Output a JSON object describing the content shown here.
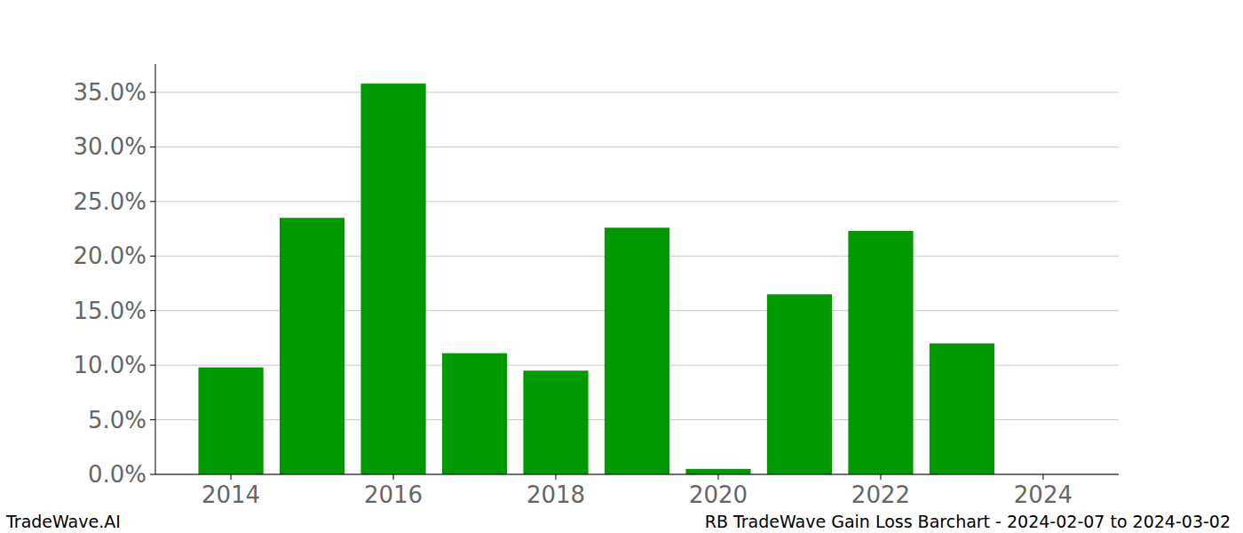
{
  "chart_data": {
    "type": "bar",
    "title": "RB TradeWave Gain Loss Barchart - 2024-02-07 to 2024-03-02",
    "annotations": [
      "TradeWave.AI"
    ],
    "x": [
      2014,
      2015,
      2016,
      2017,
      2018,
      2019,
      2020,
      2021,
      2022,
      2023
    ],
    "values": [
      9.8,
      23.5,
      35.8,
      11.1,
      9.5,
      22.6,
      0.5,
      16.5,
      22.3,
      12.0
    ],
    "color": "#029802",
    "xlim": [
      2013.07,
      2024.93
    ],
    "xticks": [
      2014,
      2016,
      2018,
      2020,
      2022,
      2024
    ],
    "ylim": [
      0,
      37.6
    ],
    "yticks": [
      {
        "value": 0,
        "label": "0.0%"
      },
      {
        "value": 5,
        "label": "5.0%"
      },
      {
        "value": 10,
        "label": "10.0%"
      },
      {
        "value": 15,
        "label": "15.0%"
      },
      {
        "value": 20,
        "label": "20.0%"
      },
      {
        "value": 25,
        "label": "25.0%"
      },
      {
        "value": 30,
        "label": "30.0%"
      },
      {
        "value": 35,
        "label": "35.0%"
      }
    ],
    "grid": true
  }
}
